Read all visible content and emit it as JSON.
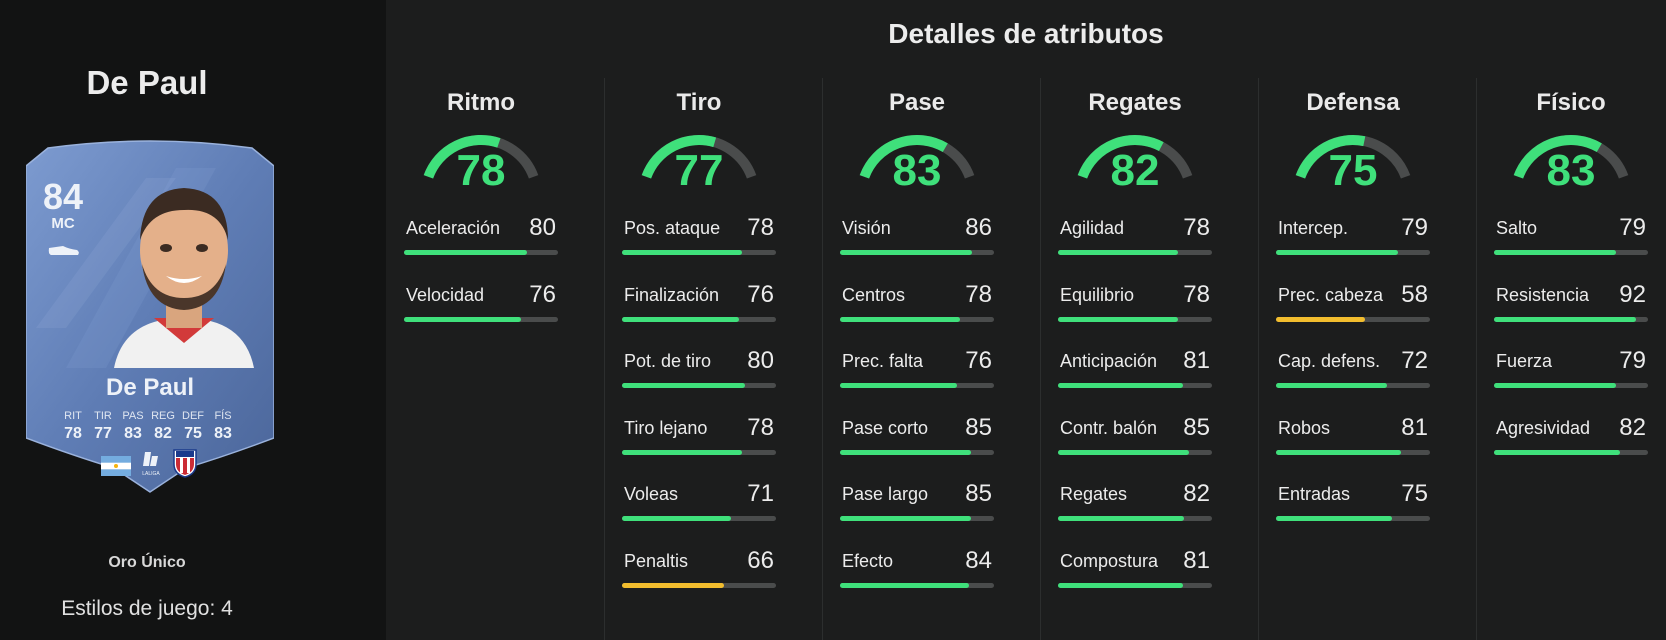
{
  "player": {
    "title": "De Paul",
    "card": {
      "rating": "84",
      "position": "MC",
      "name": "De Paul",
      "stats": [
        {
          "label": "RIT",
          "value": "78"
        },
        {
          "label": "TIR",
          "value": "77"
        },
        {
          "label": "PAS",
          "value": "83"
        },
        {
          "label": "REG",
          "value": "82"
        },
        {
          "label": "DEF",
          "value": "75"
        },
        {
          "label": "FÍS",
          "value": "83"
        }
      ],
      "league_text": "LALIGA",
      "icons": [
        "boot-icon",
        "player-photo",
        "argentina-flag-icon",
        "laliga-logo",
        "atletico-madrid-crest-icon"
      ]
    },
    "card_type": "Oro Único",
    "playstyles": "Estilos de juego: 4"
  },
  "page_title": "Detalles de atributos",
  "colors": {
    "green": "#3fe07b",
    "yellow": "#f2bd2e",
    "track": "#4a4c4c",
    "card": "#5f7db5"
  },
  "categories": [
    {
      "name": "Ritmo",
      "value": 78,
      "attrs": [
        {
          "name": "Aceleración",
          "value": 80,
          "color": "green"
        },
        {
          "name": "Velocidad",
          "value": 76,
          "color": "green"
        }
      ]
    },
    {
      "name": "Tiro",
      "value": 77,
      "attrs": [
        {
          "name": "Pos. ataque",
          "value": 78,
          "color": "green"
        },
        {
          "name": "Finalización",
          "value": 76,
          "color": "green"
        },
        {
          "name": "Pot. de tiro",
          "value": 80,
          "color": "green"
        },
        {
          "name": "Tiro lejano",
          "value": 78,
          "color": "green"
        },
        {
          "name": "Voleas",
          "value": 71,
          "color": "green"
        },
        {
          "name": "Penaltis",
          "value": 66,
          "color": "yellow"
        }
      ]
    },
    {
      "name": "Pase",
      "value": 83,
      "attrs": [
        {
          "name": "Visión",
          "value": 86,
          "color": "green"
        },
        {
          "name": "Centros",
          "value": 78,
          "color": "green"
        },
        {
          "name": "Prec. falta",
          "value": 76,
          "color": "green"
        },
        {
          "name": "Pase corto",
          "value": 85,
          "color": "green"
        },
        {
          "name": "Pase largo",
          "value": 85,
          "color": "green"
        },
        {
          "name": "Efecto",
          "value": 84,
          "color": "green"
        }
      ]
    },
    {
      "name": "Regates",
      "value": 82,
      "attrs": [
        {
          "name": "Agilidad",
          "value": 78,
          "color": "green"
        },
        {
          "name": "Equilibrio",
          "value": 78,
          "color": "green"
        },
        {
          "name": "Anticipación",
          "value": 81,
          "color": "green"
        },
        {
          "name": "Contr. balón",
          "value": 85,
          "color": "green"
        },
        {
          "name": "Regates",
          "value": 82,
          "color": "green"
        },
        {
          "name": "Compostura",
          "value": 81,
          "color": "green"
        }
      ]
    },
    {
      "name": "Defensa",
      "value": 75,
      "attrs": [
        {
          "name": "Intercep.",
          "value": 79,
          "color": "green"
        },
        {
          "name": "Prec. cabeza",
          "value": 58,
          "color": "yellow"
        },
        {
          "name": "Cap. defens.",
          "value": 72,
          "color": "green"
        },
        {
          "name": "Robos",
          "value": 81,
          "color": "green"
        },
        {
          "name": "Entradas",
          "value": 75,
          "color": "green"
        }
      ]
    },
    {
      "name": "Físico",
      "value": 83,
      "attrs": [
        {
          "name": "Salto",
          "value": 79,
          "color": "green"
        },
        {
          "name": "Resistencia",
          "value": 92,
          "color": "green"
        },
        {
          "name": "Fuerza",
          "value": 79,
          "color": "green"
        },
        {
          "name": "Agresividad",
          "value": 82,
          "color": "green"
        }
      ]
    }
  ]
}
